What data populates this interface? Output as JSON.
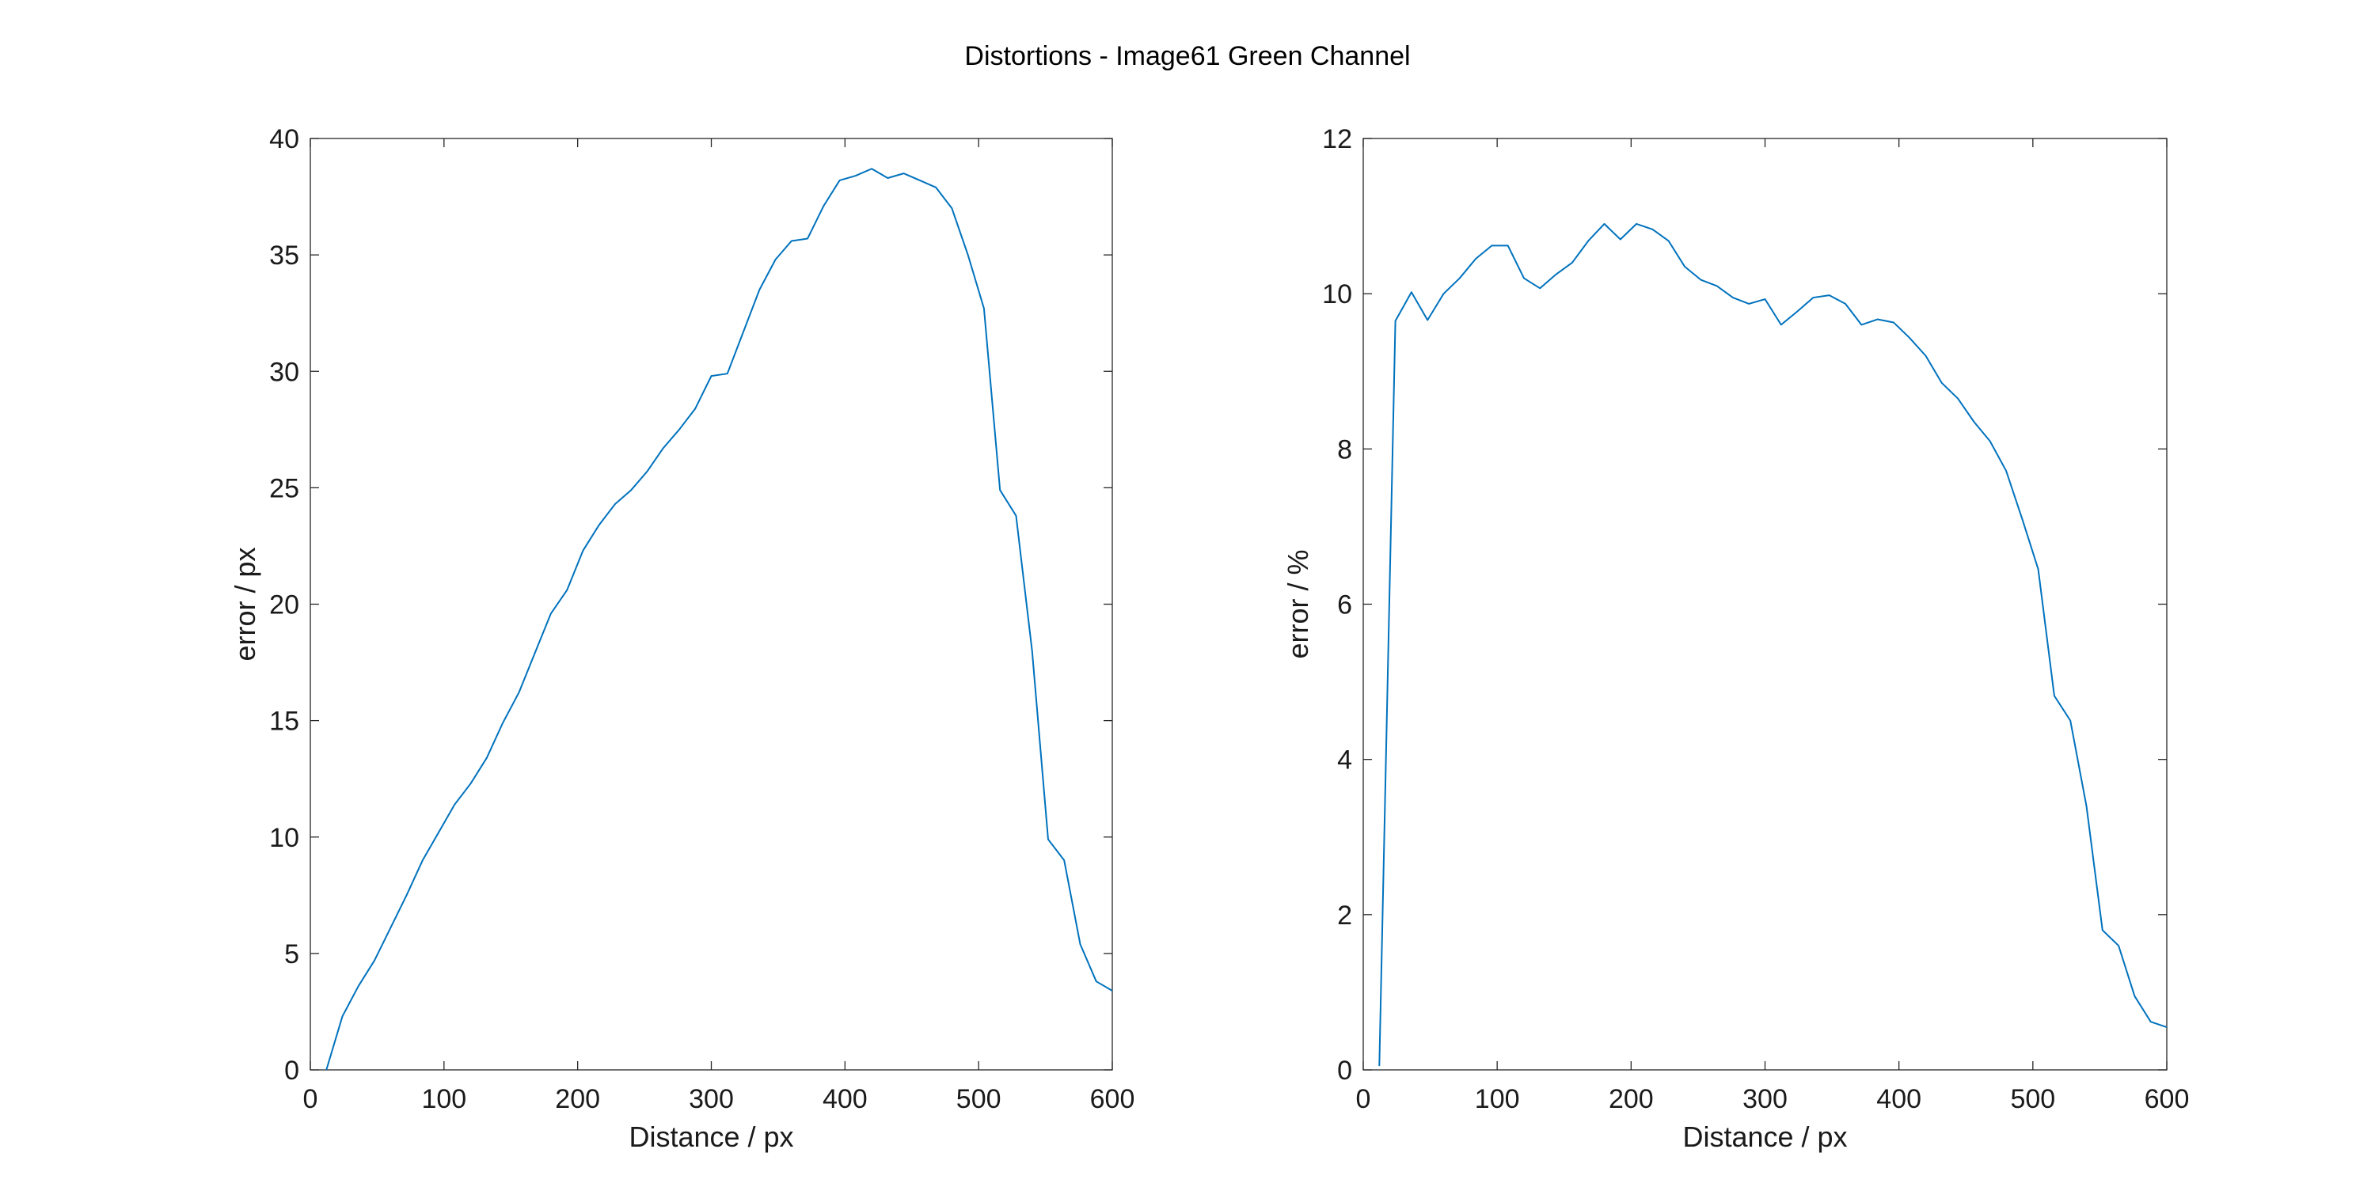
{
  "figure": {
    "title": "Distortions - Image61 Green Channel"
  },
  "line_color": "#0072BD",
  "chart_data": [
    {
      "type": "line",
      "title": "",
      "xlabel": "Distance / px",
      "ylabel": "error / px",
      "xlim": [
        0,
        600
      ],
      "ylim": [
        0,
        40
      ],
      "xticks": [
        0,
        100,
        200,
        300,
        400,
        500,
        600
      ],
      "yticks": [
        0,
        5,
        10,
        15,
        20,
        25,
        30,
        35,
        40
      ],
      "grid": false,
      "x": [
        12,
        24,
        36,
        48,
        60,
        72,
        84,
        96,
        108,
        120,
        132,
        144,
        156,
        168,
        180,
        192,
        204,
        216,
        228,
        240,
        252,
        264,
        276,
        288,
        300,
        312,
        324,
        336,
        348,
        360,
        372,
        384,
        396,
        408,
        420,
        432,
        444,
        456,
        468,
        480,
        492,
        504,
        516,
        528,
        540,
        552,
        564,
        576,
        588,
        600
      ],
      "series": [
        {
          "values": [
            0.0,
            2.3,
            3.6,
            4.7,
            6.1,
            7.5,
            9.0,
            10.2,
            11.4,
            12.3,
            13.4,
            14.9,
            16.2,
            17.9,
            19.6,
            20.6,
            22.3,
            23.4,
            24.3,
            24.9,
            25.7,
            26.7,
            27.5,
            28.4,
            29.8,
            29.9,
            31.7,
            33.5,
            34.8,
            35.6,
            35.7,
            37.1,
            38.2,
            38.4,
            38.7,
            38.3,
            38.5,
            38.2,
            37.9,
            37.0,
            35.0,
            32.7,
            24.9,
            23.8,
            18.0,
            9.9,
            9.0,
            5.4,
            3.8,
            3.4
          ]
        }
      ]
    },
    {
      "type": "line",
      "title": "",
      "xlabel": "Distance / px",
      "ylabel": "error / %",
      "xlim": [
        0,
        600
      ],
      "ylim": [
        0,
        12
      ],
      "xticks": [
        0,
        100,
        200,
        300,
        400,
        500,
        600
      ],
      "yticks": [
        0,
        2,
        4,
        6,
        8,
        10,
        12
      ],
      "grid": false,
      "x": [
        12,
        24,
        36,
        48,
        60,
        72,
        84,
        96,
        108,
        120,
        132,
        144,
        156,
        168,
        180,
        192,
        204,
        216,
        228,
        240,
        252,
        264,
        276,
        288,
        300,
        312,
        324,
        336,
        348,
        360,
        372,
        384,
        396,
        408,
        420,
        432,
        444,
        456,
        468,
        480,
        492,
        504,
        516,
        528,
        540,
        552,
        564,
        576,
        588,
        600
      ],
      "series": [
        {
          "values": [
            0.05,
            9.65,
            10.02,
            9.66,
            10.0,
            10.2,
            10.45,
            10.62,
            10.62,
            10.2,
            10.07,
            10.25,
            10.4,
            10.68,
            10.9,
            10.7,
            10.9,
            10.83,
            10.68,
            10.35,
            10.18,
            10.1,
            9.95,
            9.87,
            9.93,
            9.6,
            9.77,
            9.95,
            9.98,
            9.87,
            9.6,
            9.67,
            9.63,
            9.43,
            9.2,
            8.85,
            8.65,
            8.35,
            8.1,
            7.72,
            7.1,
            6.45,
            4.82,
            4.5,
            3.4,
            1.8,
            1.6,
            0.95,
            0.62,
            0.55
          ]
        }
      ]
    }
  ]
}
